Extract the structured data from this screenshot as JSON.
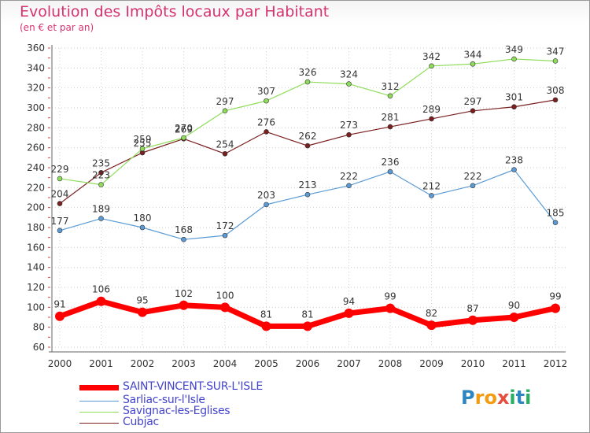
{
  "header": {
    "title": "Evolution des Impôts locaux par Habitant",
    "subtitle": "(en € et par an)"
  },
  "logo": {
    "text": "Proxiti",
    "letters": [
      "P",
      "r",
      "o",
      "x",
      "i",
      "t",
      "i"
    ],
    "colors": [
      "#2e86c1",
      "#f39c12",
      "#f39c12",
      "#e74c3c",
      "#27ae60",
      "#2e86c1",
      "#27ae60"
    ]
  },
  "chart_data": {
    "type": "line",
    "title": "Evolution des Impôts locaux par Habitant",
    "subtitle": "(en € et par an)",
    "categories": [
      "2000",
      "2001",
      "2002",
      "2003",
      "2004",
      "2005",
      "2006",
      "2007",
      "2008",
      "2009",
      "2010",
      "2011",
      "2012"
    ],
    "ylim": [
      60,
      360
    ],
    "yticks": [
      60,
      80,
      100,
      120,
      140,
      160,
      180,
      200,
      220,
      240,
      260,
      280,
      300,
      320,
      340,
      360
    ],
    "grid": true,
    "legend_position": "bottom-left",
    "series": [
      {
        "name": "SAINT-VINCENT-SUR-L'ISLE",
        "color": "#ff0000",
        "values": [
          91,
          106,
          95,
          102,
          100,
          81,
          81,
          94,
          99,
          82,
          87,
          90,
          99
        ]
      },
      {
        "name": "Sarliac-sur-l'Isle",
        "color": "#5b9bd5",
        "values": [
          177,
          189,
          180,
          168,
          172,
          203,
          213,
          222,
          236,
          212,
          222,
          238,
          185
        ]
      },
      {
        "name": "Savignac-les-Eglises",
        "color": "#8fdc5a",
        "values": [
          229,
          223,
          259,
          270,
          297,
          307,
          326,
          324,
          312,
          342,
          344,
          349,
          347
        ]
      },
      {
        "name": "Cubjac",
        "color": "#7a1f1f",
        "values": [
          204,
          235,
          255,
          269,
          254,
          276,
          262,
          273,
          281,
          289,
          297,
          301,
          308
        ]
      }
    ]
  }
}
